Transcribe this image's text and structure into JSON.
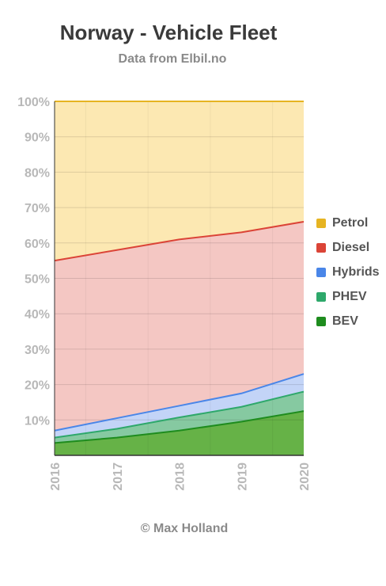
{
  "title": "Norway - Vehicle Fleet",
  "subtitle": "Data from Elbil.no",
  "footer": "© Max Holland",
  "chart_data": {
    "type": "area",
    "stacked": true,
    "x": [
      "2016",
      "2017",
      "2018",
      "2019",
      "2020"
    ],
    "ylim": [
      0,
      100
    ],
    "y_tick_labels": [
      "10%",
      "20%",
      "30%",
      "40%",
      "50%",
      "60%",
      "70%",
      "80%",
      "90%",
      "100%"
    ],
    "grid": true,
    "legend_position": "right",
    "series": [
      {
        "name": "BEV",
        "color": "#1e8c1e",
        "fill": "#66b247",
        "values": [
          3.5,
          5.0,
          7.0,
          9.5,
          12.5
        ]
      },
      {
        "name": "PHEV",
        "color": "#2ea86b",
        "fill": "#86c9a1",
        "values": [
          1.5,
          2.5,
          3.7,
          4.2,
          5.5
        ]
      },
      {
        "name": "Hybrids",
        "color": "#4a86e8",
        "fill": "#c3d4f7",
        "values": [
          2.0,
          3.0,
          3.3,
          3.8,
          5.0
        ]
      },
      {
        "name": "Diesel",
        "color": "#db4437",
        "fill": "#f4c7c3",
        "values": [
          48.0,
          47.5,
          47.0,
          45.5,
          43.0
        ]
      },
      {
        "name": "Petrol",
        "color": "#e6b422",
        "fill": "#fce8b2",
        "values": [
          45.0,
          42.0,
          39.0,
          37.0,
          34.0
        ]
      }
    ]
  }
}
